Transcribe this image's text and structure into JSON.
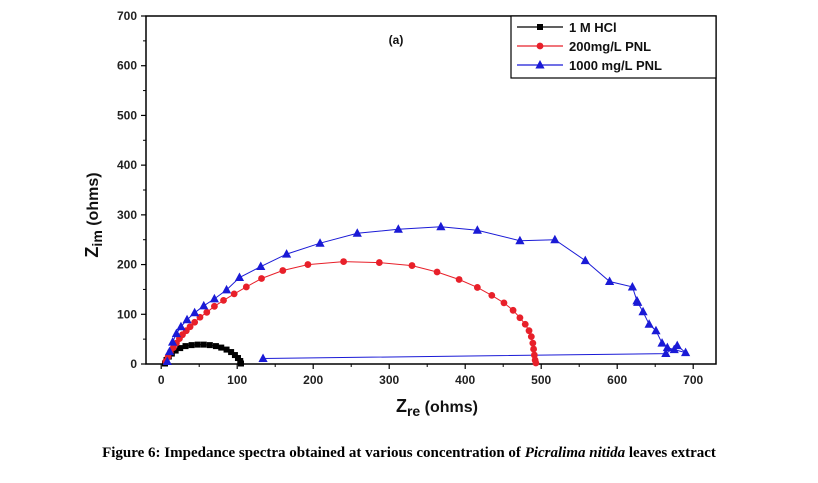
{
  "chart_data": {
    "type": "scatter",
    "annotation": "(a)",
    "xlabel_main": "Z",
    "xlabel_sub": "re",
    "xlabel_unit": " (ohms)",
    "ylabel_main": "Z",
    "ylabel_sub": "im",
    "ylabel_unit": " (ohms)",
    "xlim": [
      -20,
      730
    ],
    "ylim": [
      0,
      700
    ],
    "xticks": [
      0,
      100,
      200,
      300,
      400,
      500,
      600,
      700
    ],
    "yticks": [
      0,
      100,
      200,
      300,
      400,
      500,
      600,
      700
    ],
    "grid": false,
    "legend_position": "top-right",
    "series": [
      {
        "name": "1 M HCl",
        "marker": "square",
        "color": "#000000",
        "x": [
          5,
          7,
          10,
          14,
          19,
          25,
          32,
          40,
          48,
          56,
          64,
          72,
          79,
          86,
          92,
          97,
          101,
          104,
          105
        ],
        "y": [
          1,
          8,
          15,
          21,
          27,
          32,
          36,
          38,
          39,
          39,
          38,
          36,
          33,
          29,
          24,
          18,
          12,
          6,
          1
        ]
      },
      {
        "name": "200mg/L PNL",
        "marker": "circle",
        "color": "#e8202a",
        "x": [
          6,
          9,
          12,
          16,
          20,
          24,
          28,
          33,
          38,
          44,
          51,
          60,
          70,
          82,
          96,
          112,
          132,
          160,
          193,
          240,
          287,
          330,
          363,
          392,
          416,
          435,
          451,
          463,
          472,
          479,
          484,
          487,
          489,
          490,
          491,
          492,
          493
        ],
        "y": [
          5,
          15,
          24,
          33,
          42,
          51,
          59,
          67,
          75,
          84,
          94,
          104,
          116,
          128,
          141,
          155,
          172,
          188,
          200,
          206,
          204,
          198,
          185,
          170,
          154,
          138,
          123,
          108,
          93,
          80,
          67,
          55,
          42,
          30,
          18,
          8,
          2
        ]
      },
      {
        "name": "1000 mg/L PNL",
        "marker": "triangle",
        "color": "#1a1ad6",
        "x": [
          8,
          11,
          15,
          20,
          26,
          34,
          44,
          56,
          70,
          86,
          103,
          131,
          165,
          209,
          258,
          312,
          368,
          416,
          472,
          518,
          558,
          590,
          620,
          626,
          627,
          634,
          642,
          651,
          659,
          666,
          675,
          690,
          679,
          664,
          134
        ],
        "y": [
          5,
          25,
          44,
          61,
          75,
          89,
          103,
          117,
          131,
          149,
          174,
          196,
          221,
          243,
          263,
          271,
          276,
          269,
          248,
          250,
          208,
          166,
          155,
          127,
          124,
          105,
          80,
          67,
          42,
          33,
          29,
          23,
          37,
          21,
          11
        ]
      }
    ]
  },
  "caption": {
    "prefix": "Figure 6: Impedance spectra obtained at various concentration of ",
    "italic": "Picralima nitida",
    "suffix": " leaves extract"
  }
}
